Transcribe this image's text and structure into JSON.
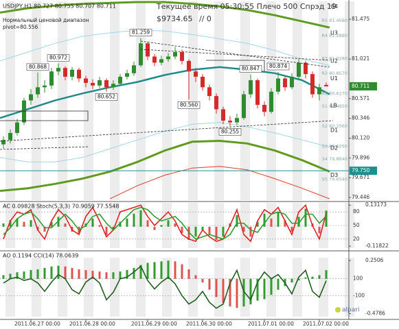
{
  "chart_data": [
    {
      "type": "candlestick",
      "title": "USDJPY,H1  80.727 80.755 80.707 80.711",
      "subtitle": "Нормальный ценовой диапазон",
      "pivot_text": "pivot=80.556",
      "status_text": "Текущее время 05:30:55 Плечо 500 Спрэд 19",
      "balance_text": "$9734.65",
      "orders_text": "// 0",
      "watermark": "alpari",
      "categories": [
        null,
        null,
        null,
        null,
        "2011.06.27 00:00",
        null,
        null,
        null,
        null,
        null,
        null,
        null,
        "2011.06.28 00:00",
        null,
        null,
        null,
        null,
        null,
        null,
        null,
        null,
        "2011.06.29 00:00",
        null,
        null,
        null,
        null,
        null,
        null,
        null,
        "2011.06.30 00:00",
        null,
        null,
        null,
        null,
        null,
        null,
        null,
        null,
        "2011.07.01 00:00",
        null,
        null,
        null,
        null,
        null,
        null,
        null,
        "2011.07.02 00:00",
        null
      ],
      "open": [
        80.05,
        80.1,
        80.18,
        80.3,
        80.55,
        80.62,
        80.7,
        80.72,
        80.88,
        80.92,
        80.82,
        80.9,
        80.8,
        80.75,
        80.72,
        80.78,
        80.7,
        80.74,
        80.82,
        80.86,
        80.95,
        81.2,
        81.05,
        80.98,
        81.02,
        81.05,
        81.1,
        81.0,
        80.88,
        80.82,
        80.7,
        80.6,
        80.45,
        80.32,
        80.3,
        80.35,
        80.62,
        80.78,
        80.5,
        80.42,
        80.65,
        80.8,
        80.7,
        80.82,
        80.98,
        80.85,
        80.62,
        80.727
      ],
      "high": [
        80.14,
        80.22,
        80.34,
        80.58,
        80.68,
        80.868,
        80.78,
        80.92,
        80.972,
        80.94,
        80.93,
        80.92,
        80.83,
        80.79,
        80.82,
        80.8,
        80.78,
        80.85,
        80.9,
        80.99,
        81.259,
        81.22,
        81.08,
        81.06,
        81.09,
        81.16,
        81.13,
        81.02,
        80.92,
        80.85,
        80.73,
        80.63,
        80.48,
        80.37,
        80.4,
        80.66,
        80.847,
        80.8,
        80.54,
        80.69,
        80.874,
        80.83,
        80.86,
        81.02,
        81.0,
        80.88,
        80.74,
        80.755
      ],
      "low": [
        80.0,
        80.06,
        80.15,
        80.27,
        80.5,
        80.58,
        80.64,
        80.68,
        80.84,
        80.78,
        80.78,
        80.76,
        80.7,
        80.68,
        80.69,
        80.652,
        80.67,
        80.72,
        80.79,
        80.83,
        80.93,
        81.01,
        80.94,
        80.95,
        80.99,
        81.02,
        80.96,
        80.56,
        80.76,
        80.66,
        80.55,
        80.4,
        80.28,
        80.255,
        80.27,
        80.33,
        80.58,
        80.46,
        80.37,
        80.4,
        80.62,
        80.66,
        80.68,
        80.79,
        80.8,
        80.58,
        80.55,
        80.707
      ],
      "close": [
        80.1,
        80.18,
        80.3,
        80.55,
        80.62,
        80.7,
        80.72,
        80.88,
        80.92,
        80.82,
        80.9,
        80.8,
        80.75,
        80.72,
        80.78,
        80.7,
        80.74,
        80.82,
        80.86,
        80.95,
        81.2,
        81.05,
        80.98,
        81.02,
        81.05,
        81.1,
        81.0,
        80.88,
        80.82,
        80.7,
        80.6,
        80.45,
        80.32,
        80.3,
        80.35,
        80.62,
        80.78,
        80.5,
        80.42,
        80.65,
        80.8,
        80.7,
        80.82,
        80.98,
        80.85,
        80.62,
        80.7,
        80.711
      ],
      "high_labels": [
        null,
        null,
        null,
        null,
        null,
        "80.868",
        null,
        null,
        "80.972",
        null,
        null,
        null,
        null,
        null,
        null,
        null,
        null,
        null,
        null,
        null,
        "81.259",
        null,
        null,
        null,
        null,
        null,
        null,
        null,
        null,
        null,
        null,
        null,
        null,
        null,
        null,
        null,
        "80.847",
        null,
        null,
        null,
        "80.874",
        null,
        null,
        null,
        null,
        null,
        null,
        null
      ],
      "low_labels": [
        null,
        null,
        null,
        null,
        null,
        null,
        null,
        null,
        null,
        null,
        null,
        null,
        null,
        null,
        null,
        "80.652",
        null,
        null,
        null,
        null,
        null,
        null,
        null,
        null,
        null,
        null,
        null,
        "80.560",
        null,
        null,
        null,
        null,
        null,
        "80.255",
        null,
        null,
        null,
        null,
        null,
        null,
        null,
        null,
        null,
        null,
        null,
        null,
        null,
        null
      ],
      "up_color": "#2e8b2e",
      "down_color": "#d42a2a",
      "overlays": [
        {
          "color": "#5e9a1e",
          "width": 3,
          "values": [
            81.55,
            81.6,
            81.63,
            81.65,
            81.66,
            81.67,
            81.67,
            81.65,
            81.62,
            81.58,
            81.52,
            81.45,
            81.38
          ]
        },
        {
          "color": "#5e9a1e",
          "width": 3,
          "values": [
            79.52,
            79.55,
            79.6,
            79.66,
            79.74,
            79.85,
            79.98,
            80.08,
            80.09,
            80.06,
            79.98,
            79.87,
            79.74
          ]
        },
        {
          "color": "#1f8a8a",
          "width": 2.5,
          "values": [
            80.35,
            80.45,
            80.55,
            80.63,
            80.7,
            80.76,
            80.84,
            80.9,
            80.93,
            80.9,
            80.86,
            80.78,
            80.62
          ]
        },
        {
          "color": "#9fd6e8",
          "width": 1,
          "values": [
            81.0,
            81.1,
            81.2,
            81.28,
            81.32,
            81.35,
            81.34,
            81.3,
            81.25,
            81.2,
            81.12,
            81.02,
            80.95
          ]
        },
        {
          "color": "#9fd6e8",
          "width": 1,
          "values": [
            79.9,
            79.85,
            79.85,
            79.9,
            80.0,
            80.1,
            80.2,
            80.28,
            80.3,
            80.25,
            80.18,
            80.1,
            80.02
          ]
        },
        {
          "color": "#e03a2a",
          "width": 1,
          "values": [
            null,
            null,
            null,
            null,
            79.43,
            79.58,
            79.7,
            79.78,
            79.8,
            79.76,
            79.66,
            79.55,
            79.43
          ]
        }
      ],
      "levels": [
        {
          "label": "R5 81.4580",
          "value": 81.458
        },
        {
          "label": "R4 81.2880",
          "value": 81.288
        },
        {
          "label": "R3 81.0280",
          "value": 81.028
        },
        {
          "label": "R2 80.8570",
          "value": 80.857
        },
        {
          "label": "R1 80.6270",
          "value": 80.627
        },
        {
          "label": "S1 80.4850",
          "value": 80.485
        },
        {
          "label": "S2 80.2560",
          "value": 80.256
        },
        {
          "label": "S3 80.0290",
          "value": 80.029
        },
        {
          "label": "S4 79.8840",
          "value": 79.884
        },
        {
          "label": "S5 79.6540",
          "value": 79.654
        }
      ],
      "pivots": [
        {
          "label": "U4",
          "value": 81.62
        },
        {
          "label": "U3",
          "value": 81.32
        },
        {
          "label": "U2",
          "value": 81.0
        },
        {
          "label": "U1",
          "value": 80.8
        },
        {
          "label": "LB",
          "value": 80.49
        },
        {
          "label": "D1",
          "value": 80.21
        },
        {
          "label": "D2",
          "value": 80.01
        },
        {
          "label": "D3",
          "value": 79.7
        }
      ],
      "price_tag_color": "#2e8b2e",
      "hline": {
        "value": 79.75,
        "label": "79.750",
        "color": "#1e8f8f"
      },
      "ylim": [
        79.415,
        81.678
      ],
      "yticks": [
        81.475,
        81.021,
        80.571,
        80.346,
        {
          "value": 80.12,
          "label": "80.120"
        },
        79.896,
        79.671,
        79.446
      ]
    },
    {
      "type": "combo",
      "title": "AC 0.09828  Stoch(5,3,3) 70.9059 77.5548",
      "series": [
        {
          "kind": "bar",
          "axis": "y2",
          "color": "#2e9d2e",
          "down_color": "#e0524f",
          "values": [
            0.02,
            0.04,
            0.05,
            0.03,
            0.04,
            -0.02,
            -0.03,
            0.03,
            0.06,
            0.02,
            -0.03,
            -0.04,
            0.02,
            0.05,
            0.01,
            -0.05,
            -0.02,
            0.03,
            0.05,
            0.08,
            0.1,
            0.04,
            -0.02,
            0.01,
            0.04,
            0.02,
            -0.04,
            -0.08,
            -0.06,
            -0.02,
            -0.05,
            -0.08,
            -0.06,
            0.02,
            0.07,
            -0.03,
            -0.06,
            0.03,
            0.08,
            0.05,
            0.09,
            0.04,
            -0.03,
            0.06,
            0.11,
            0.02,
            -0.04,
            0.09828
          ]
        },
        {
          "kind": "line",
          "color": "#e02020",
          "values": [
            20,
            60,
            80,
            75,
            85,
            40,
            20,
            60,
            85,
            70,
            40,
            30,
            70,
            90,
            60,
            25,
            40,
            80,
            85,
            90,
            95,
            70,
            50,
            65,
            80,
            60,
            30,
            20,
            15,
            40,
            25,
            15,
            20,
            50,
            85,
            30,
            15,
            60,
            85,
            75,
            90,
            60,
            30,
            80,
            95,
            50,
            20,
            77.5548
          ]
        },
        {
          "kind": "line",
          "color": "#2e9d2e",
          "values": [
            30,
            45,
            65,
            75,
            80,
            65,
            45,
            45,
            60,
            75,
            60,
            40,
            50,
            70,
            75,
            55,
            40,
            55,
            70,
            85,
            90,
            85,
            70,
            60,
            65,
            70,
            55,
            35,
            20,
            25,
            30,
            25,
            20,
            30,
            55,
            55,
            40,
            35,
            55,
            75,
            80,
            75,
            55,
            55,
            75,
            75,
            55,
            70.9059
          ]
        }
      ],
      "ylim": [
        0,
        100
      ],
      "yticks": [
        80,
        50,
        20
      ],
      "grid": true,
      "y2lim": [
        -0.13,
        0.145
      ],
      "y2ticks": [
        0.13173,
        -0.11822
      ]
    },
    {
      "type": "combo",
      "title": "AO 0.1194  CCI(14) 78.0639",
      "series": [
        {
          "kind": "bar",
          "axis": "y2",
          "color": "#2e9d2e",
          "down_color": "#e0524f",
          "values": [
            0.05,
            0.07,
            0.09,
            0.1,
            0.12,
            0.13,
            0.15,
            0.17,
            0.18,
            0.17,
            0.15,
            0.13,
            0.12,
            0.11,
            0.1,
            0.09,
            0.09,
            0.1,
            0.12,
            0.15,
            0.19,
            0.22,
            0.23,
            0.24,
            0.25,
            0.24,
            0.2,
            0.13,
            0.05,
            -0.05,
            -0.15,
            -0.25,
            -0.33,
            -0.38,
            -0.4,
            -0.38,
            -0.35,
            -0.3,
            -0.28,
            -0.22,
            -0.15,
            -0.1,
            -0.05,
            -0.02,
            0.02,
            0.03,
            0.05,
            0.1194
          ]
        },
        {
          "kind": "line",
          "color": "#1f5e1f",
          "values": [
            50,
            100,
            120,
            80,
            100,
            50,
            -50,
            60,
            150,
            100,
            -30,
            -80,
            60,
            120,
            50,
            -150,
            -60,
            100,
            120,
            180,
            250,
            80,
            -20,
            60,
            120,
            40,
            -100,
            -200,
            -150,
            -50,
            -180,
            -250,
            -200,
            50,
            200,
            -50,
            -150,
            60,
            180,
            100,
            150,
            50,
            -80,
            120,
            200,
            -50,
            -120,
            78.0639
          ]
        }
      ],
      "ylim": [
        -350,
        350
      ],
      "yticks": [
        100,
        -100
      ],
      "grid": true,
      "y2lim": [
        -0.52,
        0.29
      ],
      "y2ticks": [
        0.2506,
        -0.4786
      ]
    }
  ]
}
